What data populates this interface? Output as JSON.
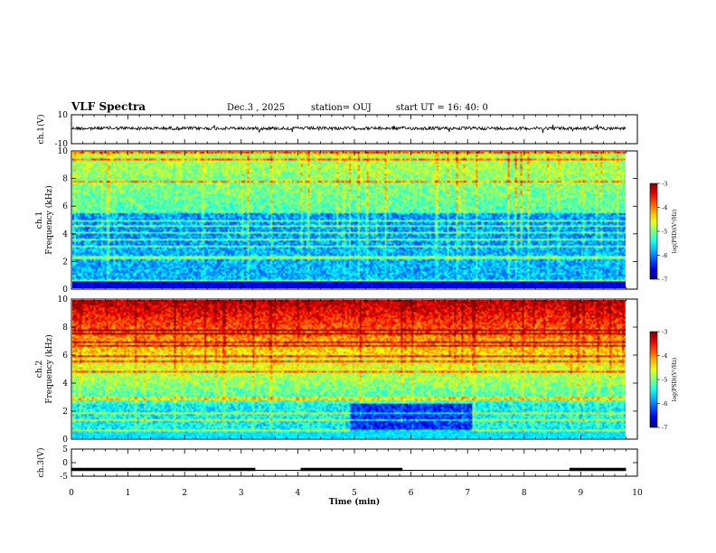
{
  "header": {
    "title": "VLF Spectra",
    "date": "Dec.3 , 2025",
    "station": "station= OUJ",
    "start": "start  UT  =   16: 40: 0"
  },
  "chart_data": [
    {
      "type": "line",
      "name": "ch1-waveform",
      "ylabel": "ch.1(V)",
      "ylim": [
        -10,
        10
      ],
      "yticks": [
        "10",
        "-10"
      ],
      "xlim": [
        0,
        10
      ],
      "baseline": 0,
      "description_level": 0
    },
    {
      "type": "heatmap",
      "name": "ch1-spectrogram",
      "ylabel": "ch.1",
      "ylabel2": "Frequency (kHz)",
      "ylim": [
        0,
        10
      ],
      "yticks": [
        "0",
        "2",
        "4",
        "6",
        "8",
        "10"
      ],
      "xlim": [
        0,
        10
      ],
      "colorbar": {
        "label": "log(PSD)(V²/Hz)",
        "range": [
          -7,
          -3
        ],
        "ticks": [
          "-3",
          "-4",
          "-5",
          "-6",
          "-7"
        ]
      }
    },
    {
      "type": "heatmap",
      "name": "ch2-spectrogram",
      "ylabel": "ch.2",
      "ylabel2": "Frequency (kHz)",
      "ylim": [
        0,
        10
      ],
      "yticks": [
        "0",
        "2",
        "4",
        "6",
        "8",
        "10"
      ],
      "xlim": [
        0,
        10
      ],
      "colorbar": {
        "label": "log(PSD)(V²/Hz)",
        "range": [
          -7,
          -3
        ],
        "ticks": [
          "-3",
          "-4",
          "-5",
          "-6",
          "-7"
        ]
      }
    },
    {
      "type": "line",
      "name": "ch3-level",
      "ylabel": "ch.3(V)",
      "ylim": [
        -5,
        5
      ],
      "yticks": [
        "5",
        "0",
        "-5"
      ],
      "xlim": [
        0,
        10
      ],
      "level": -2.5,
      "segments": [
        [
          0,
          3.25
        ],
        [
          4.05,
          5.85
        ],
        [
          8.8,
          9.8
        ]
      ]
    }
  ],
  "xaxis": {
    "label": "Time  (min)",
    "ticks": [
      "0",
      "1",
      "2",
      "3",
      "4",
      "5",
      "6",
      "7",
      "8",
      "9",
      "10"
    ]
  }
}
